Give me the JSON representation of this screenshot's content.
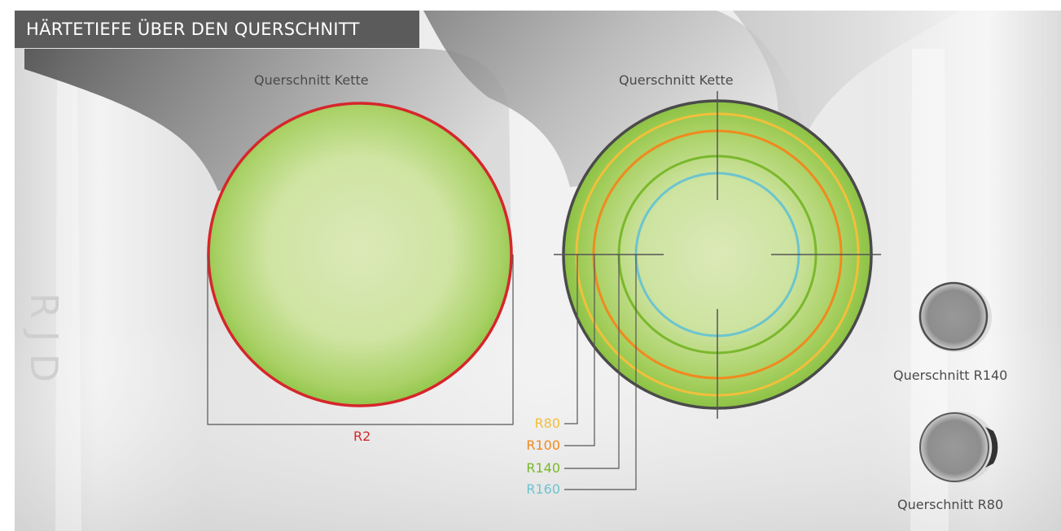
{
  "header": {
    "title": "HÄRTETIEFE ÜBER DEN QUERSCHNITT"
  },
  "left_section": {
    "title": "Querschnitt Kette",
    "outline_label": "R2",
    "outline_color": "#d6262b"
  },
  "right_section": {
    "title": "Querschnitt Kette",
    "rings": [
      {
        "label": "R80",
        "color": "#f2bf3a"
      },
      {
        "label": "R100",
        "color": "#f08a1e"
      },
      {
        "label": "R140",
        "color": "#7ab82c"
      },
      {
        "label": "R160",
        "color": "#6cc4cf"
      }
    ]
  },
  "samples": [
    {
      "label": "Querschnitt R140"
    },
    {
      "label": "Querschnitt R80"
    }
  ],
  "colors": {
    "banner_bg": "#5b5b5b",
    "fill_light": "#dbe9b8",
    "fill_dark": "#86c13c",
    "outline_right": "#4a4a4a",
    "crosshair": "#555555"
  }
}
